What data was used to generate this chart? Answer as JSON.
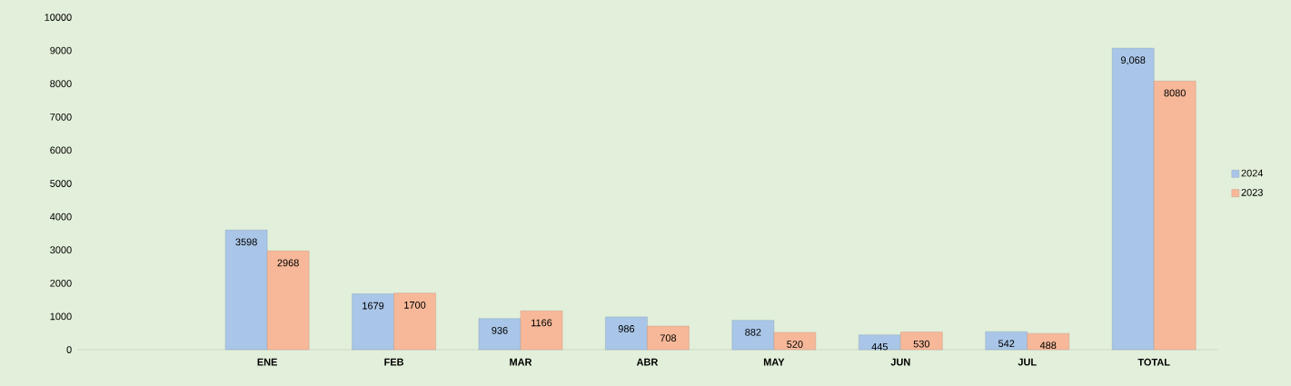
{
  "chart_data": {
    "type": "bar",
    "categories": [
      null,
      "ENE",
      "FEB",
      "MAR",
      "ABR",
      "MAY",
      "JUN",
      "JUL",
      "TOTAL"
    ],
    "series": [
      {
        "name": "2024",
        "color": "#a9c6e8",
        "values": [
          null,
          3598,
          1679,
          936,
          986,
          882,
          445,
          542,
          9068
        ],
        "value_labels": [
          null,
          "3598",
          "1679",
          "936",
          "986",
          "882",
          "445",
          "542",
          "9,068"
        ]
      },
      {
        "name": "2023",
        "color": "#f7b899",
        "values": [
          null,
          2968,
          1700,
          1166,
          708,
          520,
          530,
          488,
          8080
        ],
        "value_labels": [
          null,
          "2968",
          "1700",
          "1166",
          "708",
          "520",
          "530",
          "488",
          "8080"
        ]
      }
    ],
    "ylim": [
      0,
      10000
    ],
    "yticks": [
      0,
      1000,
      2000,
      3000,
      4000,
      5000,
      6000,
      7000,
      8000,
      9000,
      10000
    ],
    "grid": false,
    "legend": "right"
  }
}
